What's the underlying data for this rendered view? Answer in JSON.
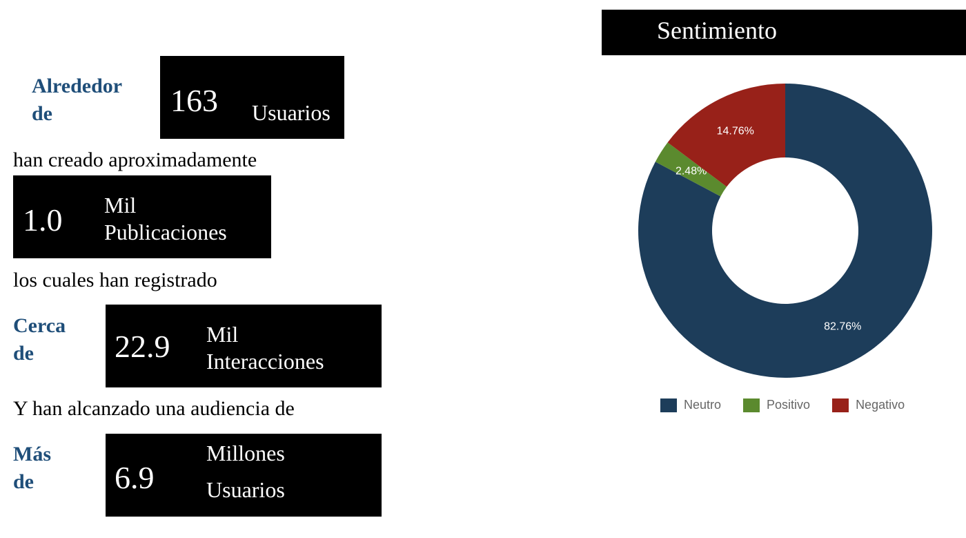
{
  "stats": {
    "users": {
      "prefix": [
        "Alrededor",
        "de"
      ],
      "value": "163",
      "unit": "Usuarios"
    },
    "line1": "han creado aproximadamente",
    "posts": {
      "value": "1.0",
      "unit": [
        "Mil",
        "Publicaciones"
      ]
    },
    "line2": "los cuales han registrado",
    "interactions": {
      "prefix": [
        "Cerca",
        "de"
      ],
      "value": "22.9",
      "unit": [
        "Mil",
        "Interacciones"
      ]
    },
    "line3": "Y han alcanzado una audiencia de",
    "audience": {
      "prefix": [
        "Más",
        "de"
      ],
      "value": "6.9",
      "unit": [
        "Millones",
        "Usuarios"
      ]
    }
  },
  "chart_data": {
    "type": "pie",
    "title": "Sentimiento",
    "donut": true,
    "categories": [
      "Neutro",
      "Positivo",
      "Negativo"
    ],
    "values": [
      82.76,
      2.48,
      14.76
    ],
    "labels": [
      "82.76%",
      "2.48%",
      "14.76%"
    ],
    "colors": [
      "#1d3d5a",
      "#5b8a2e",
      "#982119"
    ],
    "legend_position": "bottom"
  }
}
